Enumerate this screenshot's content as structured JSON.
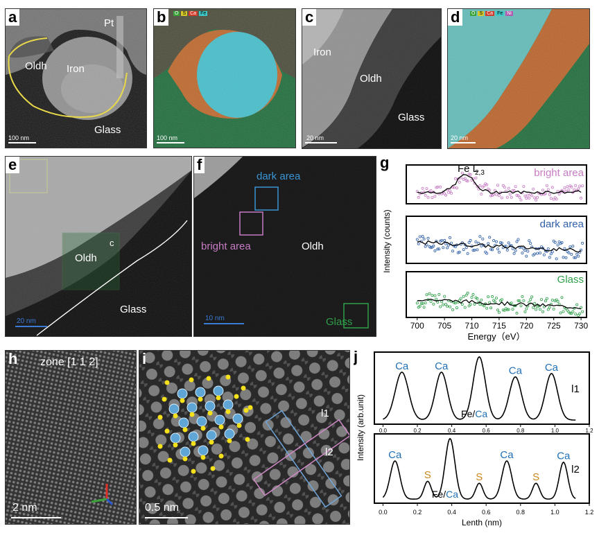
{
  "panels": {
    "a": {
      "label": "a",
      "pt": "Pt",
      "oldh": "Oldh",
      "iron": "Iron",
      "glass": "Glass",
      "scale": "100 nm"
    },
    "b": {
      "label": "b",
      "scale": "100 nm",
      "legend": [
        "O",
        "S",
        "Ca",
        "Fe"
      ],
      "legend_colors": [
        "#3aa33a",
        "#d6c82a",
        "#d23a2a",
        "#3ec9c9"
      ]
    },
    "c": {
      "label": "c",
      "iron": "Iron",
      "oldh": "Oldh",
      "glass": "Glass",
      "scale": "20 nm"
    },
    "d": {
      "label": "d",
      "scale": "20 nm",
      "legend": [
        "O",
        "S",
        "Ca",
        "Fe",
        "Ni"
      ],
      "legend_colors": [
        "#3aa33a",
        "#d6c82a",
        "#d23a2a",
        "#3ec9c9",
        "#b05ab0"
      ]
    },
    "e": {
      "label": "e",
      "oldh": "Oldh",
      "c": "c",
      "glass": "Glass",
      "scale": "20 nm"
    },
    "f": {
      "label": "f",
      "dark": "dark area",
      "bright": "bright area",
      "oldh": "Oldh",
      "glass": "Glass",
      "scale": "10  nm"
    },
    "h": {
      "label": "h",
      "zone": "zone [1 1 2]",
      "scale": "2 nm"
    },
    "i": {
      "label": "i",
      "l1": "l1",
      "l2": "l2",
      "scale": "0.5 nm"
    },
    "g": {
      "label": "g"
    },
    "j": {
      "label": "j"
    }
  },
  "chart_data": [
    {
      "id": "g",
      "type": "scatter",
      "title": "",
      "xlabel": "Energy（eV）",
      "ylabel": "Intensity (counts)",
      "xlim": [
        698,
        731
      ],
      "xticks": [
        700,
        705,
        710,
        715,
        720,
        725,
        730
      ],
      "annotation": "Fe L2,3",
      "series": [
        {
          "name": "bright area",
          "color": "#c77bc4",
          "peak_center": 708.8,
          "peak_height": 0.45,
          "baseline": 0.3
        },
        {
          "name": "dark area",
          "color": "#2f5fa8",
          "peak_center": 0,
          "peak_height": 0,
          "baseline": 0.45
        },
        {
          "name": "Glass",
          "color": "#2fa04a",
          "peak_center": 0,
          "peak_height": 0,
          "baseline": 0.4
        }
      ]
    },
    {
      "id": "j",
      "type": "line",
      "xlabel": "Lenth (nm)",
      "ylabel": "Intensity (arb.unit)",
      "xlim": [
        -0.05,
        1.2
      ],
      "xticks": [
        0.0,
        0.2,
        0.4,
        0.6,
        0.8,
        1.0,
        1.2
      ],
      "series": [
        {
          "name": "l1",
          "peaks": [
            {
              "x": 0.11,
              "h": 0.72,
              "w": 0.055
            },
            {
              "x": 0.34,
              "h": 0.72,
              "w": 0.05
            },
            {
              "x": 0.56,
              "h": 0.95,
              "w": 0.05
            },
            {
              "x": 0.77,
              "h": 0.65,
              "w": 0.05
            },
            {
              "x": 0.98,
              "h": 0.7,
              "w": 0.05
            }
          ],
          "labels": [
            {
              "x": 0.11,
              "text": "Ca",
              "color": "#1f6fb5"
            },
            {
              "x": 0.34,
              "text": "Ca",
              "color": "#1f6fb5"
            },
            {
              "x": 0.77,
              "text": "Ca",
              "color": "#1f6fb5"
            },
            {
              "x": 0.98,
              "text": "Ca",
              "color": "#1f6fb5"
            }
          ],
          "mix": "Fe/Ca",
          "mix_x": 0.56
        },
        {
          "name": "l2",
          "peaks": [
            {
              "x": 0.07,
              "h": 0.6,
              "w": 0.04
            },
            {
              "x": 0.26,
              "h": 0.28,
              "w": 0.03
            },
            {
              "x": 0.39,
              "h": 0.95,
              "w": 0.04
            },
            {
              "x": 0.56,
              "h": 0.25,
              "w": 0.03
            },
            {
              "x": 0.72,
              "h": 0.6,
              "w": 0.04
            },
            {
              "x": 0.89,
              "h": 0.25,
              "w": 0.03
            },
            {
              "x": 1.05,
              "h": 0.58,
              "w": 0.035
            }
          ],
          "labels": [
            {
              "x": 0.07,
              "text": "Ca",
              "color": "#1f6fb5"
            },
            {
              "x": 0.26,
              "text": "S",
              "color": "#c9871a"
            },
            {
              "x": 0.56,
              "text": "S",
              "color": "#c9871a"
            },
            {
              "x": 0.72,
              "text": "Ca",
              "color": "#1f6fb5"
            },
            {
              "x": 0.89,
              "text": "S",
              "color": "#c9871a"
            },
            {
              "x": 1.05,
              "text": "Ca",
              "color": "#1f6fb5"
            }
          ],
          "mix": "Fe/Ca",
          "mix_x": 0.39
        }
      ]
    }
  ]
}
